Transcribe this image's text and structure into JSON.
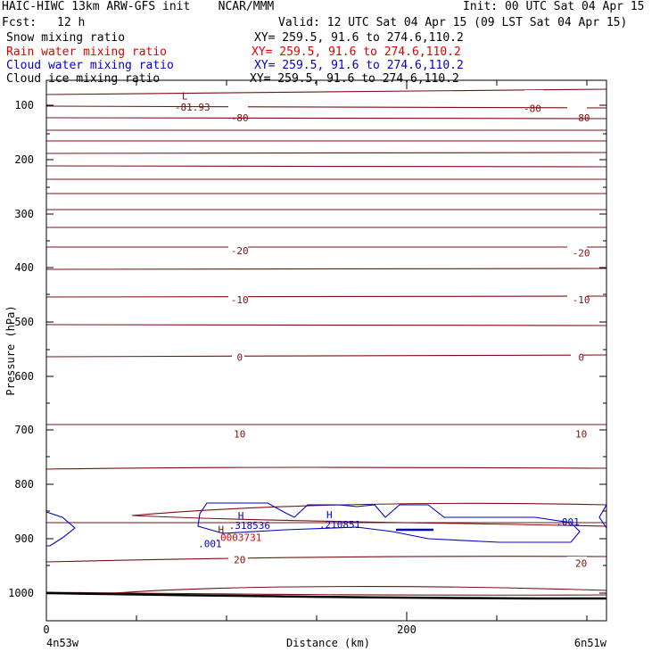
{
  "header": {
    "title": "HAIC-HIWC 13km ARW-GFS init    NCAR/MMM",
    "init": "Init: 00 UTC Sat 04 Apr 15",
    "fcst_label": "Fcst:",
    "fcst_value": "12 h",
    "valid": "Valid: 12 UTC Sat 04 Apr 15 (09 LST Sat 04 Apr 15)",
    "fields": [
      {
        "name": "Snow mixing ratio",
        "xy": "XY= 259.5, 91.6 to 274.6,110.2",
        "color": "#000000"
      },
      {
        "name": "Rain water mixing ratio",
        "xy": "XY= 259.5, 91.6 to 274.6,110.2",
        "color": "#e00000"
      },
      {
        "name": "Cloud water mixing ratio",
        "xy": "XY= 259.5, 91.6 to 274.6,110.2",
        "color": "#0000cc"
      },
      {
        "name": "Cloud ice mixing ratio",
        "xy": "XY= 259.5, 91.6 to 274.6,110.2",
        "color": "#000000"
      }
    ]
  },
  "chart_data": {
    "type": "line",
    "ylabel": "Pressure (hPa)",
    "xlabel": "Distance (km)",
    "x_ticks": [
      0,
      200
    ],
    "y_ticks": [
      100,
      200,
      300,
      400,
      500,
      600,
      700,
      800,
      900,
      1000
    ],
    "xlim": [
      0,
      310
    ],
    "ylim": [
      50,
      1050
    ],
    "y_inverted": true,
    "left_endpoint": "4n53w",
    "right_endpoint": "6n51w",
    "temperature_labels": [
      {
        "text": "-80",
        "x": 107,
        "p": 123
      },
      {
        "text": "-80",
        "x": 269,
        "p": 106
      },
      {
        "text": "-80",
        "x": 296,
        "p": 123
      },
      {
        "text": "-20",
        "x": 107,
        "p": 368
      },
      {
        "text": "-20",
        "x": 296,
        "p": 372
      },
      {
        "text": "-10",
        "x": 107,
        "p": 459
      },
      {
        "text": "-10",
        "x": 296,
        "p": 459
      },
      {
        "text": "0",
        "x": 107,
        "p": 565
      },
      {
        "text": "0",
        "x": 296,
        "p": 565
      },
      {
        "text": "10",
        "x": 107,
        "p": 706
      },
      {
        "text": "10",
        "x": 296,
        "p": 706
      },
      {
        "text": "20",
        "x": 107,
        "p": 938
      },
      {
        "text": "20",
        "x": 296,
        "p": 945
      }
    ],
    "annotations": [
      {
        "text": "L",
        "x": 75,
        "p": 83,
        "color": "#7b1010"
      },
      {
        "text": "-81.93",
        "x": 71,
        "p": 103,
        "color": "#7b1010"
      },
      {
        "text": "H",
        "x": 106,
        "p": 857,
        "color": "#0000cc"
      },
      {
        "text": ".318536",
        "x": 101,
        "p": 875,
        "color": "#0000cc"
      },
      {
        "text": ".0003731",
        "x": 93,
        "p": 897,
        "color": "#e00000"
      },
      {
        "text": "H",
        "x": 95,
        "p": 882,
        "color": "#7b1010"
      },
      {
        "text": "H",
        "x": 155,
        "p": 855,
        "color": "#0000cc"
      },
      {
        "text": ".210851",
        "x": 151,
        "p": 873,
        "color": "#0000cc"
      },
      {
        "text": ".001",
        "x": 84,
        "p": 909,
        "color": "#0000cc"
      },
      {
        "text": ".001",
        "x": 282,
        "p": 868,
        "color": "#0000cc"
      }
    ]
  }
}
